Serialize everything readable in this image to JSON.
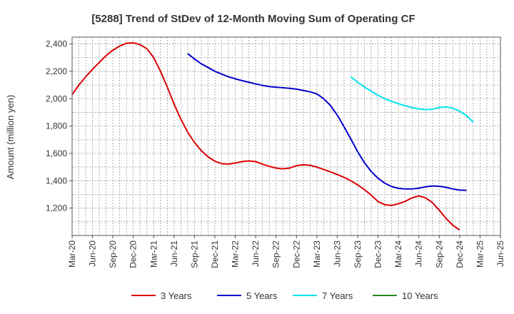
{
  "chart_data": {
    "type": "line",
    "title": "[5288]  Trend of StDev of 12-Month Moving Sum of Operating CF",
    "xlabel": "",
    "ylabel": "Amount (million yen)",
    "ylim": [
      1000,
      2450
    ],
    "yticks": [
      1200,
      1400,
      1600,
      1800,
      2000,
      2200,
      2400
    ],
    "ytick_labels": [
      "1,200",
      "1,400",
      "1,600",
      "1,800",
      "2,000",
      "2,200",
      "2,400"
    ],
    "xlim": [
      "Mar-20",
      "Jun-25"
    ],
    "xtick_labels": [
      "Mar-20",
      "Jun-20",
      "Sep-20",
      "Dec-20",
      "Mar-21",
      "Jun-21",
      "Sep-21",
      "Dec-21",
      "Mar-22",
      "Jun-22",
      "Sep-22",
      "Dec-22",
      "Mar-23",
      "Jun-23",
      "Sep-23",
      "Dec-23",
      "Mar-24",
      "Jun-24",
      "Sep-24",
      "Dec-24",
      "Mar-25",
      "Jun-25"
    ],
    "grid": true,
    "legend_position": "bottom",
    "series": [
      {
        "name": "3 Years",
        "color": "#dd0000",
        "start": "Mar-20",
        "values": [
          2030,
          2100,
          2160,
          2215,
          2265,
          2315,
          2355,
          2385,
          2405,
          2408,
          2395,
          2365,
          2300,
          2200,
          2085,
          1960,
          1850,
          1755,
          1680,
          1620,
          1575,
          1543,
          1525,
          1522,
          1530,
          1540,
          1545,
          1540,
          1522,
          1505,
          1493,
          1487,
          1493,
          1510,
          1517,
          1513,
          1500,
          1483,
          1465,
          1446,
          1425,
          1400,
          1370,
          1335,
          1295,
          1248,
          1225,
          1220,
          1232,
          1250,
          1275,
          1290,
          1275,
          1240,
          1185,
          1125,
          1075,
          1040
        ]
      },
      {
        "name": "5 Years",
        "color": "#0000cc",
        "start": "Aug-21",
        "values": [
          2330,
          2290,
          2255,
          2228,
          2200,
          2180,
          2160,
          2145,
          2132,
          2120,
          2108,
          2097,
          2088,
          2084,
          2080,
          2076,
          2070,
          2060,
          2050,
          2035,
          2000,
          1950,
          1880,
          1795,
          1705,
          1612,
          1532,
          1467,
          1418,
          1382,
          1358,
          1345,
          1340,
          1340,
          1346,
          1356,
          1362,
          1360,
          1352,
          1340,
          1332,
          1330
        ]
      },
      {
        "name": "7 Years",
        "color": "#00e5ee",
        "start": "Aug-23",
        "values": [
          2160,
          2120,
          2085,
          2055,
          2025,
          2000,
          1980,
          1963,
          1948,
          1935,
          1925,
          1920,
          1923,
          1935,
          1940,
          1930,
          1908,
          1877,
          1828
        ]
      },
      {
        "name": "10 Years",
        "color": "#228b22",
        "start": "",
        "values": []
      }
    ]
  }
}
